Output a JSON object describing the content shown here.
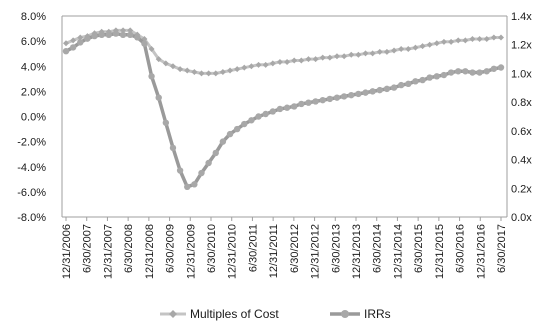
{
  "colors": {
    "background": "#ffffff",
    "multiples_line": "#c4c4c4",
    "irr_line": "#9a9a9a",
    "marker_fill": "#a8a8a8",
    "axis": "#9f9f9f",
    "text": "#1a1a1a"
  },
  "chart_data": {
    "type": "line",
    "title": "",
    "xlabel": "",
    "ylabel": "",
    "y2label": "",
    "grid": false,
    "legend_position": "bottom",
    "x_tick_labels": [
      "12/31/2006",
      "6/30/2007",
      "12/31/2007",
      "6/30/2008",
      "12/31/2008",
      "6/30/2009",
      "12/31/2009",
      "6/30/2010",
      "12/31/2010",
      "6/30/2011",
      "12/31/2011",
      "6/30/2012",
      "12/31/2012",
      "6/30/2013",
      "12/31/2013",
      "6/30/2014",
      "12/31/2014",
      "6/30/2015",
      "12/31/2015",
      "6/30/2016",
      "12/31/2016",
      "6/30/2017"
    ],
    "y_left": {
      "ticks": [
        "8.0%",
        "6.0%",
        "4.0%",
        "2.0%",
        "0.0%",
        "-2.0%",
        "-4.0%",
        "-6.0%",
        "-8.0%"
      ],
      "range": [
        -8.0,
        8.0
      ]
    },
    "y_right": {
      "ticks": [
        "1.4x",
        "1.2x",
        "1.0x",
        "0.8x",
        "0.6x",
        "0.4x",
        "0.2x",
        "0.0x"
      ],
      "range": [
        0.0,
        1.4
      ]
    },
    "series": [
      {
        "name": "Multiples of Cost",
        "axis": "right",
        "style": "diamond",
        "values": [
          1.21,
          1.23,
          1.25,
          1.26,
          1.28,
          1.29,
          1.29,
          1.3,
          1.3,
          1.3,
          1.27,
          1.24,
          1.17,
          1.1,
          1.07,
          1.05,
          1.03,
          1.02,
          1.01,
          1.0,
          1.0,
          1.0,
          1.01,
          1.02,
          1.03,
          1.04,
          1.05,
          1.06,
          1.06,
          1.07,
          1.08,
          1.08,
          1.09,
          1.09,
          1.1,
          1.1,
          1.11,
          1.11,
          1.12,
          1.12,
          1.13,
          1.13,
          1.14,
          1.14,
          1.15,
          1.15,
          1.16,
          1.17,
          1.17,
          1.18,
          1.19,
          1.2,
          1.21,
          1.22,
          1.22,
          1.23,
          1.23,
          1.24,
          1.24,
          1.24,
          1.25,
          1.25
        ]
      },
      {
        "name": "IRRs",
        "axis": "left",
        "style": "circle",
        "values": [
          5.2,
          5.5,
          5.9,
          6.2,
          6.4,
          6.5,
          6.5,
          6.6,
          6.5,
          6.5,
          6.3,
          5.8,
          3.2,
          1.5,
          -0.5,
          -2.5,
          -4.3,
          -5.6,
          -5.4,
          -4.5,
          -3.7,
          -2.9,
          -2.0,
          -1.4,
          -1.0,
          -0.6,
          -0.3,
          0.0,
          0.2,
          0.4,
          0.6,
          0.7,
          0.8,
          1.0,
          1.1,
          1.2,
          1.3,
          1.4,
          1.5,
          1.6,
          1.7,
          1.8,
          1.9,
          2.0,
          2.1,
          2.2,
          2.3,
          2.5,
          2.6,
          2.8,
          2.9,
          3.1,
          3.2,
          3.3,
          3.5,
          3.6,
          3.6,
          3.5,
          3.5,
          3.6,
          3.8,
          3.9
        ]
      }
    ]
  }
}
